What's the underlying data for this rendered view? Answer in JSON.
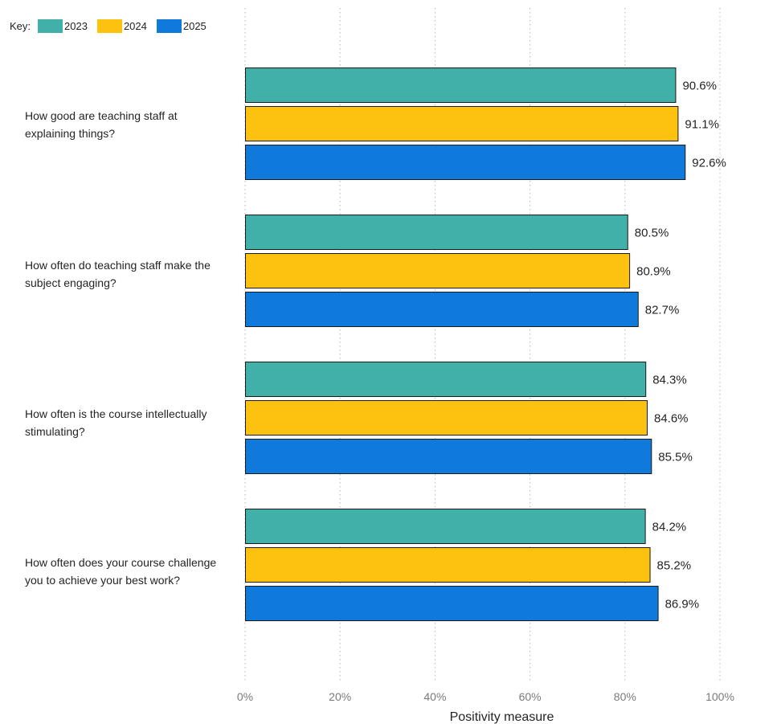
{
  "chart_data": {
    "type": "bar",
    "orientation": "horizontal",
    "categories": [
      "How good are teaching staff at explaining things?",
      "How often do teaching staff make the subject engaging?",
      "How often is the course intellectually stimulating?",
      "How often does your course challenge you to achieve your best work?"
    ],
    "category_lines": [
      [
        "How good are teaching staff at",
        "explaining things?"
      ],
      [
        "How often do teaching staff make the",
        "subject engaging?"
      ],
      [
        "How often is the course intellectually",
        "stimulating?"
      ],
      [
        "How often does your course challenge",
        "you to achieve your best work?"
      ]
    ],
    "series": [
      {
        "name": "2023",
        "color": "#41b0a8",
        "values": [
          90.6,
          80.5,
          84.3,
          84.2
        ],
        "labels": [
          "90.6%",
          "80.5%",
          "84.3%",
          "84.2%"
        ]
      },
      {
        "name": "2024",
        "color": "#fdc20f",
        "values": [
          91.1,
          80.9,
          84.6,
          85.2
        ],
        "labels": [
          "91.1%",
          "80.9%",
          "84.6%",
          "85.2%"
        ]
      },
      {
        "name": "2025",
        "color": "#0f7adc",
        "values": [
          92.6,
          82.7,
          85.5,
          86.9
        ],
        "labels": [
          "92.6%",
          "82.7%",
          "85.5%",
          "86.9%"
        ]
      }
    ],
    "xlim": [
      0,
      100
    ],
    "xticks": [
      0,
      20,
      40,
      60,
      80,
      100
    ],
    "xtick_labels": [
      "0%",
      "20%",
      "40%",
      "60%",
      "80%",
      "100%"
    ],
    "xlabel": "Positivity measure",
    "ylabel": "",
    "legend_title": "Key:",
    "legend_position": "top-left",
    "grid": "vertical dotted"
  }
}
